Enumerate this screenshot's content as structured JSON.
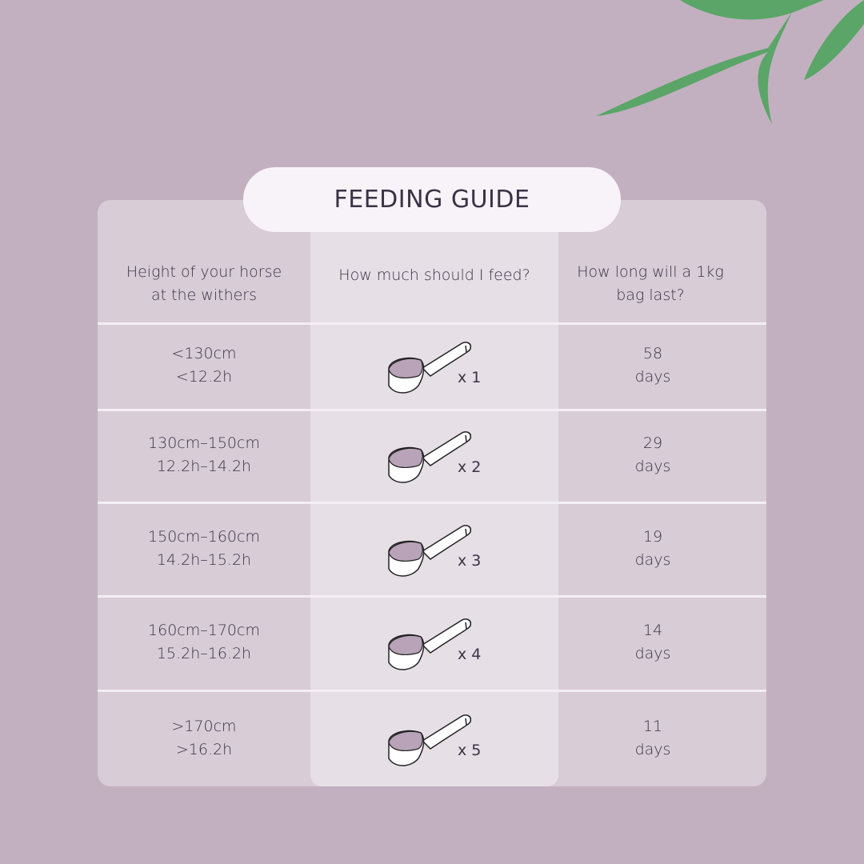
{
  "title": "FEEDING GUIDE",
  "headers": [
    "Height of your horse\nat the withers",
    "How much should I feed?",
    "How long will a 1kg\nbag last?"
  ],
  "rows": [
    {
      "height": "<130cm\n<12.2h",
      "scoops": "x 1",
      "days": "58\ndays"
    },
    {
      "height": "130cm–150cm\n12.2h–14.2h",
      "scoops": "x 2",
      "days": "29\ndays"
    },
    {
      "height": "150cm–160cm\n14.2h–15.2h",
      "scoops": "x 3",
      "days": "19\ndays"
    },
    {
      "height": "160cm–170cm\n15.2h–16.2h",
      "scoops": "x 4",
      "days": "14\ndays"
    },
    {
      "height": ">170cm\n>16.2h",
      "scoops": "x 5",
      "days": "11\ndays"
    }
  ],
  "colors": {
    "background": "#c2b0c0",
    "leaf": "#5aa567",
    "table": "#d8ccd6",
    "highlight": "#e6dfe6"
  }
}
